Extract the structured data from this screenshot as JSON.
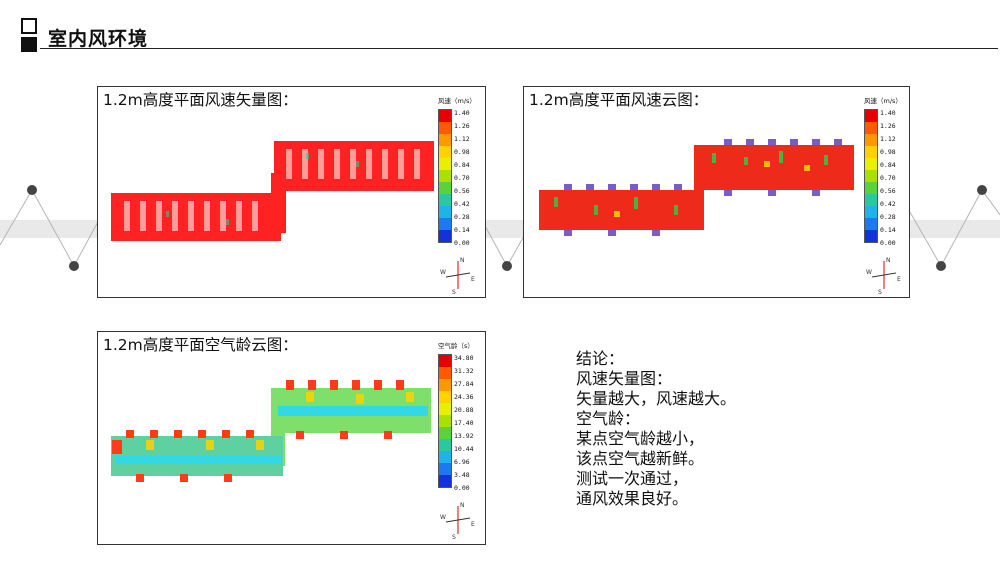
{
  "header": {
    "title": "室内风环境"
  },
  "panels": {
    "velocity_vector": {
      "title": "1.2m高度平面风速矢量图：",
      "legend": {
        "title": "风速（m/s）",
        "ticks": [
          "1.40",
          "1.26",
          "1.12",
          "0.98",
          "0.84",
          "0.70",
          "0.56",
          "0.42",
          "0.28",
          "0.14",
          "0.00"
        ]
      }
    },
    "velocity_cloud": {
      "title": "1.2m高度平面风速云图：",
      "legend": {
        "title": "风速（m/s）",
        "ticks": [
          "1.40",
          "1.26",
          "1.12",
          "0.98",
          "0.84",
          "0.70",
          "0.56",
          "0.42",
          "0.28",
          "0.14",
          "0.00"
        ]
      }
    },
    "air_age_cloud": {
      "title": "1.2m高度平面空气龄云图：",
      "legend": {
        "title": "空气龄（s）",
        "ticks": [
          "34.80",
          "31.32",
          "27.84",
          "24.36",
          "20.88",
          "17.40",
          "13.92",
          "10.44",
          "6.96",
          "3.48",
          "0.00"
        ]
      }
    }
  },
  "compass": {
    "n": "N",
    "e": "E",
    "s": "S",
    "w": "W"
  },
  "conclusion": {
    "lines": [
      "结论：",
      "风速矢量图：",
      "矢量越大，风速越大。",
      "空气龄：",
      "某点空气龄越小，",
      "该点空气越新鲜。",
      "测试一次通过，",
      "通风效果良好。"
    ]
  },
  "colors": {
    "scale": [
      "#e60000",
      "#ff5a00",
      "#ff9900",
      "#ffd200",
      "#e8f000",
      "#a8e000",
      "#5ad23c",
      "#28c8a0",
      "#1eb4e6",
      "#1e78f0",
      "#1432dc"
    ]
  }
}
